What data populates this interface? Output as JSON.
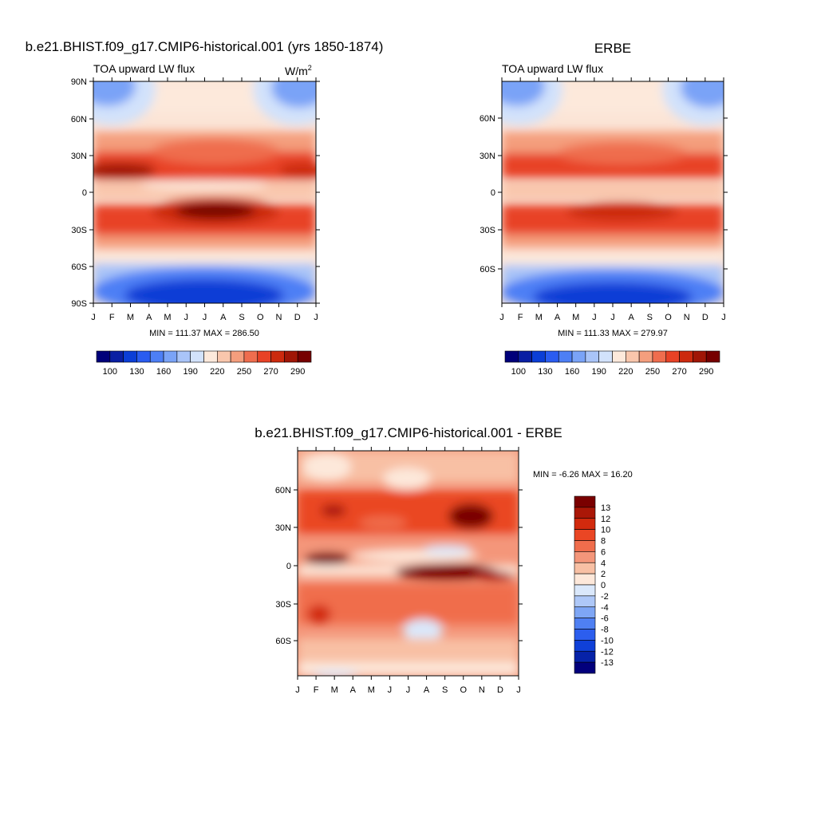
{
  "chart_data": [
    {
      "type": "heatmap",
      "title": "b.e21.BHIST.f09_g17.CMIP6-historical.001 (yrs 1850-1874)",
      "left_string": "TOA upward LW flux",
      "units_base": "W/m",
      "units_exp": "2",
      "x_tick_labels": [
        "J",
        "F",
        "M",
        "A",
        "M",
        "J",
        "J",
        "A",
        "S",
        "O",
        "N",
        "D",
        "J"
      ],
      "y_tick_labels": [
        "90N",
        "60N",
        "30N",
        "0",
        "30S",
        "60S",
        "90S"
      ],
      "stats": "MIN = 111.37 MAX = 286.50",
      "min": 111.37,
      "max": 286.5,
      "colorbar_labels": [
        "100",
        "130",
        "160",
        "190",
        "220",
        "250",
        "270",
        "290"
      ],
      "colorbar_colors": [
        "#00007a",
        "#0a1fa3",
        "#0b3ed6",
        "#2a5cf0",
        "#4d7ff5",
        "#7aa3f7",
        "#a9c4f8",
        "#d2e2fb",
        "#fde9db",
        "#f9c6ac",
        "#f49e7d",
        "#ef6d4e",
        "#e84226",
        "#cc2a0e",
        "#a01606",
        "#760000"
      ]
    },
    {
      "type": "heatmap",
      "title": "ERBE",
      "left_string": "TOA upward LW flux",
      "x_tick_labels": [
        "J",
        "F",
        "M",
        "A",
        "M",
        "J",
        "J",
        "A",
        "S",
        "O",
        "N",
        "D",
        "J"
      ],
      "y_tick_labels": [
        "60N",
        "30N",
        "0",
        "30S",
        "60S"
      ],
      "stats": "MIN = 111.33 MAX = 279.97",
      "min": 111.33,
      "max": 279.97,
      "colorbar_labels": [
        "100",
        "130",
        "160",
        "190",
        "220",
        "250",
        "270",
        "290"
      ],
      "colorbar_colors": [
        "#00007a",
        "#0a1fa3",
        "#0b3ed6",
        "#2a5cf0",
        "#4d7ff5",
        "#7aa3f7",
        "#a9c4f8",
        "#d2e2fb",
        "#fde9db",
        "#f9c6ac",
        "#f49e7d",
        "#ef6d4e",
        "#e84226",
        "#cc2a0e",
        "#a01606",
        "#760000"
      ]
    },
    {
      "type": "heatmap",
      "title": "b.e21.BHIST.f09_g17.CMIP6-historical.001 - ERBE",
      "x_tick_labels": [
        "J",
        "F",
        "M",
        "A",
        "M",
        "J",
        "J",
        "A",
        "S",
        "O",
        "N",
        "D",
        "J"
      ],
      "y_tick_labels": [
        "60N",
        "30N",
        "0",
        "30S",
        "60S"
      ],
      "stats": "MIN =  -6.26 MAX =  16.20",
      "min": -6.26,
      "max": 16.2,
      "colorbar_labels": [
        "13",
        "12",
        "10",
        "8",
        "6",
        "4",
        "2",
        "0",
        "-2",
        "-4",
        "-6",
        "-8",
        "-10",
        "-12",
        "-13"
      ],
      "colorbar_colors": [
        "#7a0000",
        "#aa1707",
        "#d22a0d",
        "#ea4624",
        "#f06d4c",
        "#f4967a",
        "#f8c0a4",
        "#fde8da",
        "#dae8fb",
        "#aec8f8",
        "#7ea6f5",
        "#4f80f3",
        "#2c5eee",
        "#0f40d8",
        "#0622a8",
        "#02007c"
      ]
    }
  ]
}
